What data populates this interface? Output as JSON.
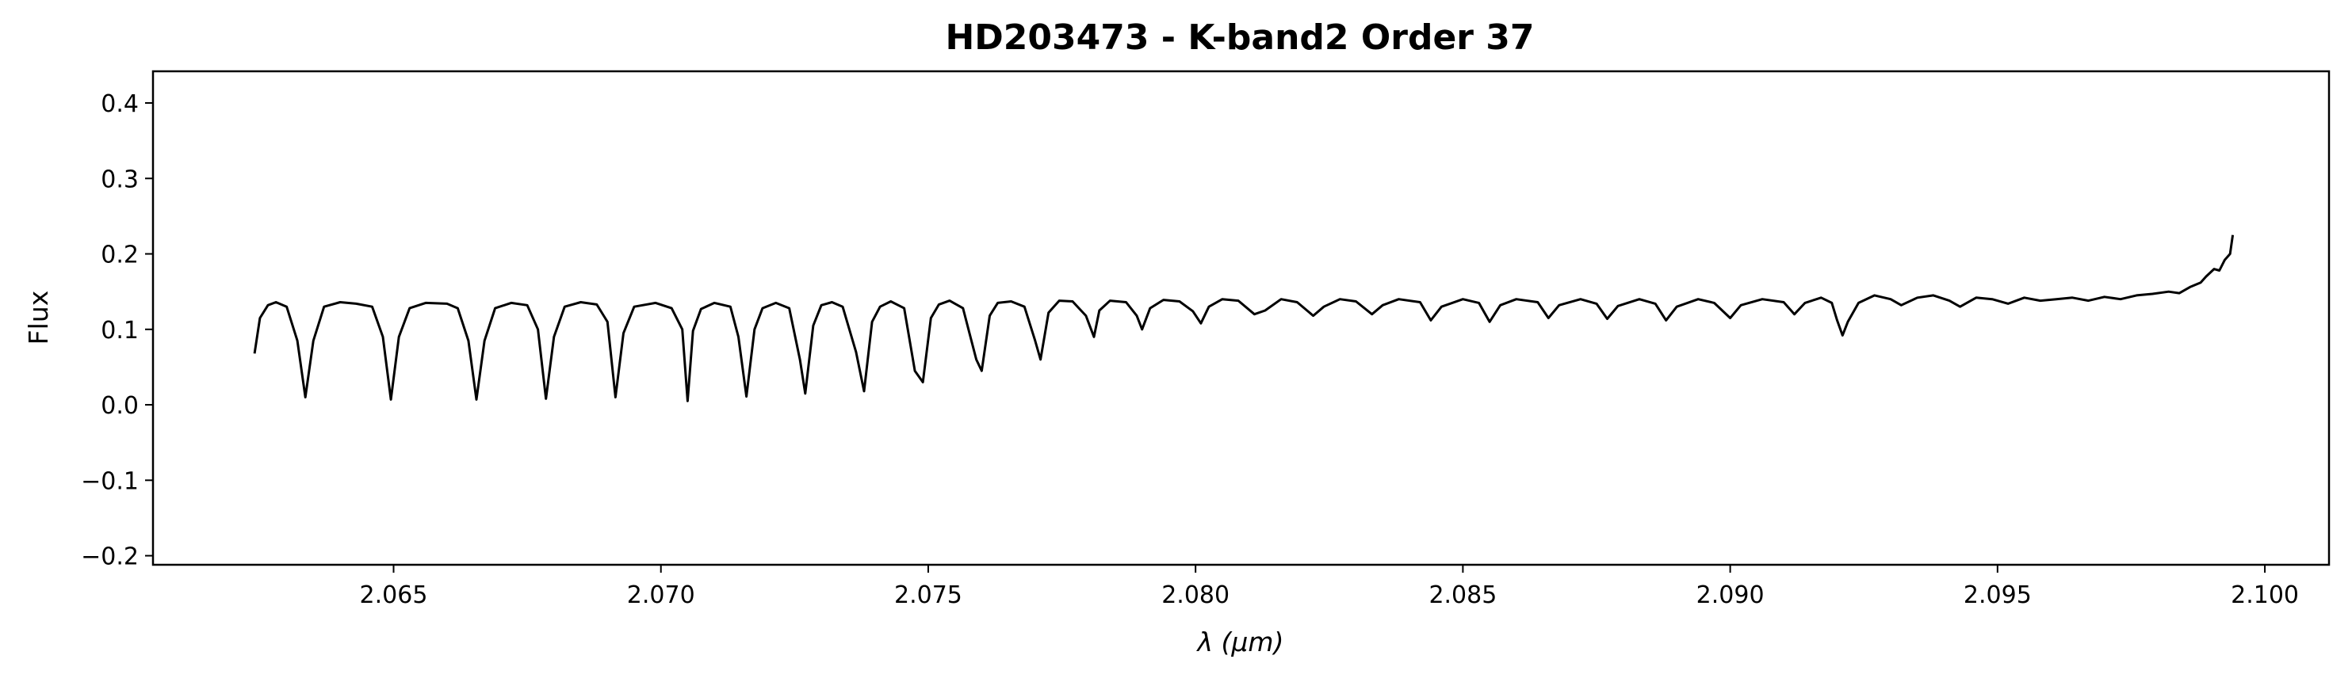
{
  "chart_data": {
    "type": "line",
    "title": "HD203473 - K-band2 Order 37",
    "xlabel": "λ (μm)",
    "ylabel": "Flux",
    "xlim": [
      2.0605,
      2.1012
    ],
    "ylim": [
      -0.212,
      0.442
    ],
    "x_ticks": [
      2.065,
      2.07,
      2.075,
      2.08,
      2.085,
      2.09,
      2.095,
      2.1
    ],
    "x_tick_labels": [
      "2.065",
      "2.070",
      "2.075",
      "2.080",
      "2.085",
      "2.090",
      "2.095",
      "2.100"
    ],
    "y_ticks": [
      -0.2,
      -0.1,
      0.0,
      0.1,
      0.2,
      0.3,
      0.4
    ],
    "y_tick_labels": [
      "−0.2",
      "−0.1",
      "0.0",
      "0.1",
      "0.2",
      "0.3",
      "0.4"
    ],
    "grid": false,
    "legend": false,
    "line_color": "#000000",
    "series": [
      {
        "x_start": 2.0624,
        "x_end": 2.0994,
        "points": [
          [
            2.0624,
            0.068
          ],
          [
            2.0625,
            0.115
          ],
          [
            2.06265,
            0.132
          ],
          [
            2.0628,
            0.136
          ],
          [
            2.063,
            0.13
          ],
          [
            2.0632,
            0.085
          ],
          [
            2.06335,
            0.01
          ],
          [
            2.0635,
            0.085
          ],
          [
            2.0637,
            0.13
          ],
          [
            2.064,
            0.136
          ],
          [
            2.0643,
            0.134
          ],
          [
            2.0646,
            0.13
          ],
          [
            2.0648,
            0.09
          ],
          [
            2.06495,
            0.007
          ],
          [
            2.0651,
            0.09
          ],
          [
            2.0653,
            0.128
          ],
          [
            2.0656,
            0.135
          ],
          [
            2.066,
            0.134
          ],
          [
            2.0662,
            0.128
          ],
          [
            2.0664,
            0.085
          ],
          [
            2.06655,
            0.007
          ],
          [
            2.0667,
            0.085
          ],
          [
            2.0669,
            0.128
          ],
          [
            2.0672,
            0.135
          ],
          [
            2.0675,
            0.132
          ],
          [
            2.0677,
            0.1
          ],
          [
            2.06785,
            0.008
          ],
          [
            2.068,
            0.09
          ],
          [
            2.0682,
            0.13
          ],
          [
            2.0685,
            0.136
          ],
          [
            2.0688,
            0.133
          ],
          [
            2.069,
            0.11
          ],
          [
            2.06915,
            0.01
          ],
          [
            2.0693,
            0.095
          ],
          [
            2.0695,
            0.13
          ],
          [
            2.0699,
            0.135
          ],
          [
            2.0702,
            0.128
          ],
          [
            2.0704,
            0.1
          ],
          [
            2.0705,
            0.005
          ],
          [
            2.0706,
            0.098
          ],
          [
            2.07075,
            0.127
          ],
          [
            2.071,
            0.135
          ],
          [
            2.0713,
            0.13
          ],
          [
            2.07145,
            0.09
          ],
          [
            2.0716,
            0.011
          ],
          [
            2.07175,
            0.1
          ],
          [
            2.0719,
            0.128
          ],
          [
            2.07215,
            0.135
          ],
          [
            2.0724,
            0.128
          ],
          [
            2.0726,
            0.06
          ],
          [
            2.0727,
            0.015
          ],
          [
            2.07285,
            0.105
          ],
          [
            2.073,
            0.132
          ],
          [
            2.0732,
            0.136
          ],
          [
            2.0734,
            0.13
          ],
          [
            2.07365,
            0.07
          ],
          [
            2.0738,
            0.018
          ],
          [
            2.07395,
            0.11
          ],
          [
            2.0741,
            0.13
          ],
          [
            2.0743,
            0.137
          ],
          [
            2.07455,
            0.128
          ],
          [
            2.07475,
            0.045
          ],
          [
            2.0749,
            0.03
          ],
          [
            2.07505,
            0.115
          ],
          [
            2.0752,
            0.133
          ],
          [
            2.0754,
            0.138
          ],
          [
            2.07565,
            0.128
          ],
          [
            2.0759,
            0.06
          ],
          [
            2.076,
            0.045
          ],
          [
            2.07615,
            0.118
          ],
          [
            2.0763,
            0.135
          ],
          [
            2.07655,
            0.137
          ],
          [
            2.0768,
            0.13
          ],
          [
            2.077,
            0.085
          ],
          [
            2.0771,
            0.06
          ],
          [
            2.07725,
            0.122
          ],
          [
            2.07745,
            0.138
          ],
          [
            2.0777,
            0.137
          ],
          [
            2.07795,
            0.118
          ],
          [
            2.0781,
            0.09
          ],
          [
            2.0782,
            0.125
          ],
          [
            2.0784,
            0.138
          ],
          [
            2.0787,
            0.136
          ],
          [
            2.0789,
            0.118
          ],
          [
            2.079,
            0.1
          ],
          [
            2.07915,
            0.128
          ],
          [
            2.0794,
            0.139
          ],
          [
            2.0797,
            0.137
          ],
          [
            2.07995,
            0.124
          ],
          [
            2.0801,
            0.108
          ],
          [
            2.08025,
            0.13
          ],
          [
            2.0805,
            0.14
          ],
          [
            2.0808,
            0.138
          ],
          [
            2.0811,
            0.12
          ],
          [
            2.0813,
            0.125
          ],
          [
            2.0816,
            0.14
          ],
          [
            2.0819,
            0.136
          ],
          [
            2.0822,
            0.118
          ],
          [
            2.0824,
            0.13
          ],
          [
            2.0827,
            0.14
          ],
          [
            2.083,
            0.137
          ],
          [
            2.0833,
            0.12
          ],
          [
            2.0835,
            0.132
          ],
          [
            2.0838,
            0.14
          ],
          [
            2.0842,
            0.136
          ],
          [
            2.0844,
            0.112
          ],
          [
            2.0846,
            0.13
          ],
          [
            2.085,
            0.14
          ],
          [
            2.0853,
            0.135
          ],
          [
            2.0855,
            0.11
          ],
          [
            2.0857,
            0.132
          ],
          [
            2.086,
            0.14
          ],
          [
            2.0864,
            0.136
          ],
          [
            2.0866,
            0.115
          ],
          [
            2.0868,
            0.132
          ],
          [
            2.0872,
            0.14
          ],
          [
            2.0875,
            0.134
          ],
          [
            2.0877,
            0.114
          ],
          [
            2.0879,
            0.131
          ],
          [
            2.0883,
            0.14
          ],
          [
            2.0886,
            0.134
          ],
          [
            2.0888,
            0.112
          ],
          [
            2.089,
            0.13
          ],
          [
            2.0894,
            0.14
          ],
          [
            2.0897,
            0.135
          ],
          [
            2.09,
            0.115
          ],
          [
            2.0902,
            0.132
          ],
          [
            2.0906,
            0.14
          ],
          [
            2.091,
            0.136
          ],
          [
            2.0912,
            0.12
          ],
          [
            2.0914,
            0.135
          ],
          [
            2.0917,
            0.142
          ],
          [
            2.0919,
            0.135
          ],
          [
            2.092,
            0.112
          ],
          [
            2.0921,
            0.092
          ],
          [
            2.0922,
            0.11
          ],
          [
            2.0924,
            0.135
          ],
          [
            2.0927,
            0.145
          ],
          [
            2.093,
            0.14
          ],
          [
            2.0932,
            0.132
          ],
          [
            2.0935,
            0.142
          ],
          [
            2.0938,
            0.145
          ],
          [
            2.0941,
            0.138
          ],
          [
            2.0943,
            0.13
          ],
          [
            2.0946,
            0.142
          ],
          [
            2.0949,
            0.14
          ],
          [
            2.0952,
            0.134
          ],
          [
            2.0955,
            0.142
          ],
          [
            2.0958,
            0.138
          ],
          [
            2.0961,
            0.14
          ],
          [
            2.0964,
            0.142
          ],
          [
            2.0967,
            0.138
          ],
          [
            2.097,
            0.143
          ],
          [
            2.0973,
            0.14
          ],
          [
            2.0976,
            0.145
          ],
          [
            2.0979,
            0.147
          ],
          [
            2.0982,
            0.15
          ],
          [
            2.0984,
            0.148
          ],
          [
            2.0986,
            0.156
          ],
          [
            2.0988,
            0.162
          ],
          [
            2.0989,
            0.17
          ],
          [
            2.09905,
            0.18
          ],
          [
            2.09915,
            0.178
          ],
          [
            2.09925,
            0.192
          ],
          [
            2.09935,
            0.2
          ],
          [
            2.0994,
            0.225
          ]
        ]
      }
    ]
  }
}
